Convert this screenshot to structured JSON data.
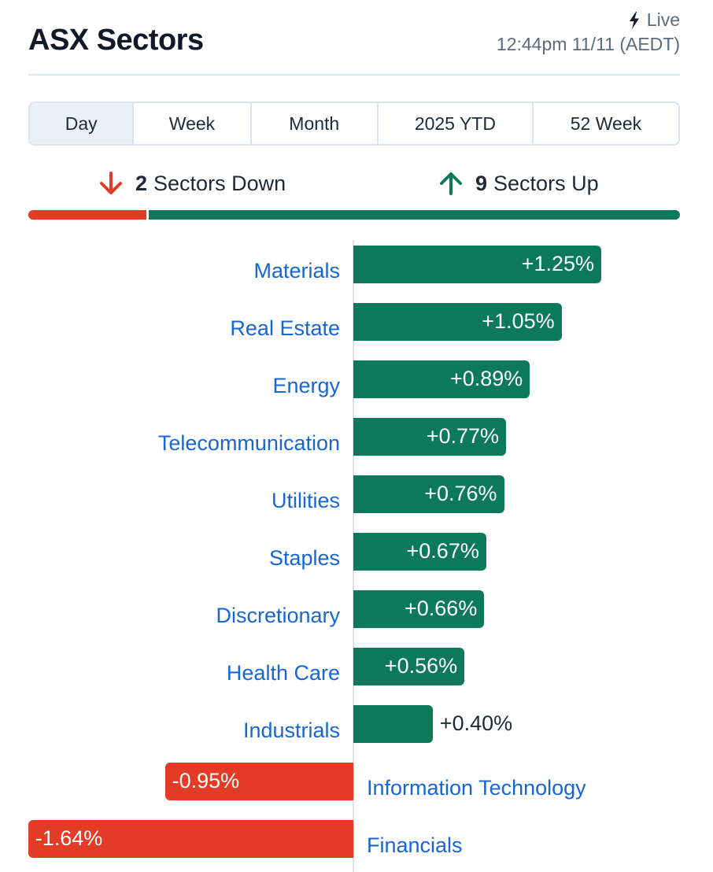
{
  "header": {
    "title": "ASX Sectors",
    "live_label": "Live",
    "timestamp": "12:44pm 11/11 (AEDT)"
  },
  "tabs": [
    {
      "label": "Day",
      "active": true
    },
    {
      "label": "Week",
      "active": false
    },
    {
      "label": "Month",
      "active": false
    },
    {
      "label": "2025 YTD",
      "active": false
    },
    {
      "label": "52 Week",
      "active": false
    }
  ],
  "summary": {
    "down_count": "2",
    "down_label": "Sectors Down",
    "up_count": "9",
    "up_label": "Sectors Up"
  },
  "colors": {
    "positive": "#0c7a58",
    "negative": "#e23b26",
    "link": "#1766d4"
  },
  "chart_data": {
    "type": "bar",
    "orientation": "horizontal",
    "categories": [
      "Materials",
      "Real Estate",
      "Energy",
      "Telecommunication",
      "Utilities",
      "Staples",
      "Discretionary",
      "Health Care",
      "Industrials",
      "Information Technology",
      "Financials"
    ],
    "values": [
      1.25,
      1.05,
      0.89,
      0.77,
      0.76,
      0.67,
      0.66,
      0.56,
      0.4,
      -0.95,
      -1.64
    ],
    "value_labels": [
      "+1.25%",
      "+1.05%",
      "+0.89%",
      "+0.77%",
      "+0.76%",
      "+0.67%",
      "+0.66%",
      "+0.56%",
      "+0.40%",
      "-0.95%",
      "-1.64%"
    ],
    "unit": "%"
  }
}
